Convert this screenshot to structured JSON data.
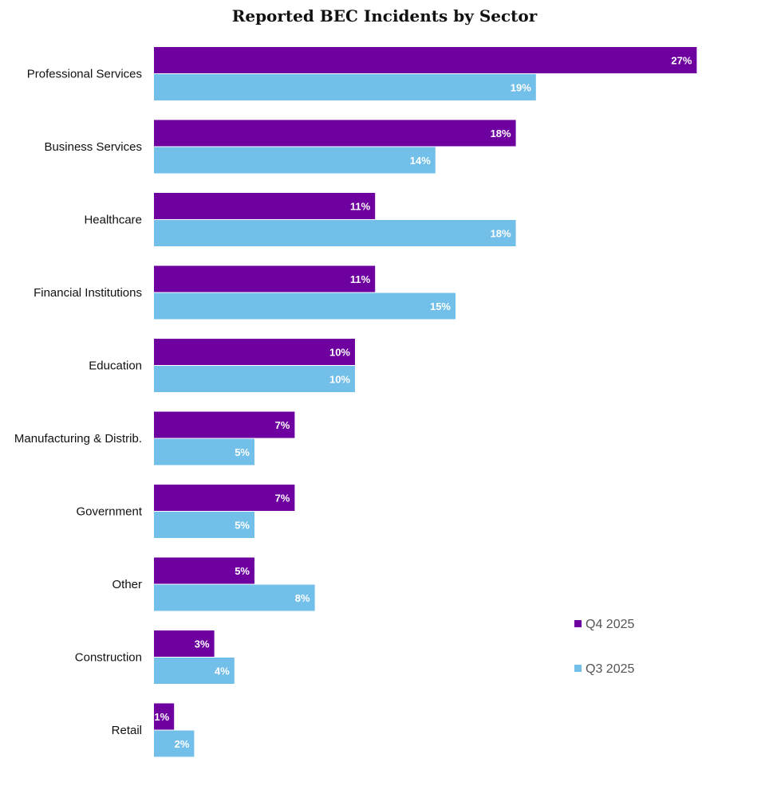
{
  "chart_data": {
    "type": "bar",
    "orientation": "horizontal",
    "title": "Reported BEC Incidents by Sector",
    "categories": [
      "Professional Services",
      "Business Services",
      "Healthcare",
      "Financial Institutions",
      "Education",
      "Manufacturing & Distrib.",
      "Government",
      "Other",
      "Construction",
      "Retail"
    ],
    "series": [
      {
        "name": "Q4 2025",
        "color": "#6e00a0",
        "values": [
          27,
          18,
          11,
          11,
          10,
          7,
          7,
          5,
          3,
          1
        ],
        "labels": [
          "27%",
          "18%",
          "11%",
          "11%",
          "10%",
          "7%",
          "7%",
          "5%",
          "3%",
          "1%"
        ]
      },
      {
        "name": "Q3 2025",
        "color": "#72bfe9",
        "values": [
          19,
          14,
          18,
          15,
          10,
          5,
          5,
          8,
          4,
          2
        ],
        "labels": [
          "19%",
          "14%",
          "18%",
          "15%",
          "10%",
          "5%",
          "5%",
          "8%",
          "4%",
          "2%"
        ]
      }
    ],
    "xlim": [
      0,
      30
    ],
    "grid": false,
    "legend": "bottom-right"
  }
}
